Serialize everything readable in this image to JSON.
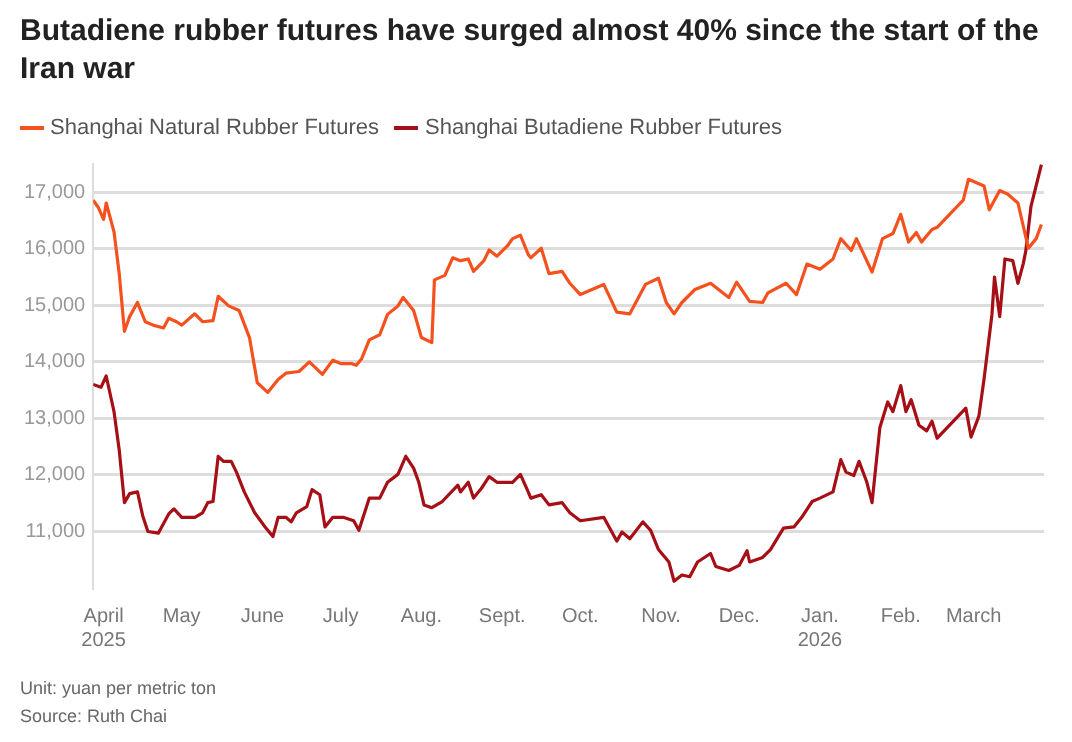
{
  "chart_data": {
    "type": "line",
    "title": "Butadiene rubber futures have surged almost 40% since the start of the Iran war",
    "legend": "top left",
    "grid": "y",
    "marker": "none",
    "line_style": "solid",
    "xlim": [
      "2025-03-28",
      "2026-03-28"
    ],
    "xticks": [
      {
        "value": "2025-04-01",
        "label": "April\n2025"
      },
      {
        "value": "2025-05-01",
        "label": "May"
      },
      {
        "value": "2025-06-01",
        "label": "June"
      },
      {
        "value": "2025-07-01",
        "label": "July"
      },
      {
        "value": "2025-08-01",
        "label": "Aug."
      },
      {
        "value": "2025-09-01",
        "label": "Sept."
      },
      {
        "value": "2025-10-01",
        "label": "Oct."
      },
      {
        "value": "2025-11-01",
        "label": "Nov."
      },
      {
        "value": "2025-12-01",
        "label": "Dec."
      },
      {
        "value": "2026-01-01",
        "label": "Jan.\n2026"
      },
      {
        "value": "2026-02-01",
        "label": "Feb."
      },
      {
        "value": "2026-03-01",
        "label": "March"
      }
    ],
    "ylim": [
      10000,
      17500
    ],
    "yticks": [
      {
        "value": 11000,
        "label": "11,000"
      },
      {
        "value": 12000,
        "label": "12,000"
      },
      {
        "value": 13000,
        "label": "13,000"
      },
      {
        "value": 14000,
        "label": "14,000"
      },
      {
        "value": 15000,
        "label": "15,000"
      },
      {
        "value": 16000,
        "label": "16,000"
      },
      {
        "value": 17000,
        "label": "17,000"
      }
    ],
    "annotations": [
      "Unit: yuan per metric ton",
      "Source: Ruth Chai"
    ],
    "series": [
      {
        "name": "Shanghai Natural Rubber Futures",
        "color": "#f4511e",
        "x": [
          "2025-03-28",
          "2025-03-30",
          "2025-04-01",
          "2025-04-02",
          "2025-04-05",
          "2025-04-07",
          "2025-04-09",
          "2025-04-11",
          "2025-04-14",
          "2025-04-17",
          "2025-04-20",
          "2025-04-24",
          "2025-04-26",
          "2025-04-29",
          "2025-05-01",
          "2025-05-06",
          "2025-05-09",
          "2025-05-13",
          "2025-05-15",
          "2025-05-19",
          "2025-05-23",
          "2025-05-27",
          "2025-05-30",
          "2025-06-03",
          "2025-06-07",
          "2025-06-10",
          "2025-06-15",
          "2025-06-19",
          "2025-06-24",
          "2025-06-28",
          "2025-07-01",
          "2025-07-05",
          "2025-07-07",
          "2025-07-09",
          "2025-07-12",
          "2025-07-16",
          "2025-07-19",
          "2025-07-23",
          "2025-07-25",
          "2025-07-29",
          "2025-08-01",
          "2025-08-05",
          "2025-08-06",
          "2025-08-10",
          "2025-08-13",
          "2025-08-16",
          "2025-08-19",
          "2025-08-21",
          "2025-08-25",
          "2025-08-27",
          "2025-08-30",
          "2025-09-03",
          "2025-09-05",
          "2025-09-08",
          "2025-09-11",
          "2025-09-12",
          "2025-09-16",
          "2025-09-19",
          "2025-09-24",
          "2025-09-27",
          "2025-10-01",
          "2025-10-10",
          "2025-10-15",
          "2025-10-20",
          "2025-10-26",
          "2025-10-31",
          "2025-11-03",
          "2025-11-06",
          "2025-11-09",
          "2025-11-14",
          "2025-11-20",
          "2025-11-27",
          "2025-11-30",
          "2025-12-05",
          "2025-12-10",
          "2025-12-12",
          "2025-12-19",
          "2025-12-23",
          "2025-12-27",
          "2026-01-01",
          "2026-01-06",
          "2026-01-09",
          "2026-01-13",
          "2026-01-15",
          "2026-01-21",
          "2026-01-25",
          "2026-01-29",
          "2026-02-01",
          "2026-02-04",
          "2026-02-07",
          "2026-02-09",
          "2026-02-13",
          "2026-02-15",
          "2026-02-25",
          "2026-02-27",
          "2026-03-05",
          "2026-03-07",
          "2026-03-11",
          "2026-03-14",
          "2026-03-18",
          "2026-03-22",
          "2026-03-25",
          "2026-03-27"
        ],
        "values": [
          16860,
          16730,
          16520,
          16810,
          16300,
          15560,
          14540,
          14800,
          15050,
          14710,
          14650,
          14600,
          14770,
          14710,
          14650,
          14850,
          14710,
          14730,
          15160,
          14990,
          14910,
          14430,
          13630,
          13460,
          13690,
          13800,
          13830,
          14000,
          13780,
          14030,
          13970,
          13970,
          13940,
          14050,
          14390,
          14480,
          14840,
          14990,
          15140,
          14910,
          14430,
          14340,
          15450,
          15530,
          15840,
          15790,
          15820,
          15600,
          15790,
          15980,
          15870,
          16050,
          16180,
          16240,
          15900,
          15840,
          16010,
          15560,
          15600,
          15390,
          15190,
          15370,
          14880,
          14850,
          15370,
          15480,
          15050,
          14850,
          15050,
          15280,
          15390,
          15140,
          15410,
          15070,
          15050,
          15220,
          15390,
          15190,
          15730,
          15640,
          15820,
          16180,
          15970,
          16180,
          15590,
          16180,
          16270,
          16610,
          16120,
          16290,
          16120,
          16340,
          16380,
          16860,
          17230,
          17110,
          16690,
          17030,
          16970,
          16810,
          16010,
          16180,
          16430
        ]
      },
      {
        "name": "Shanghai Butadiene Rubber Futures",
        "color": "#a50f15",
        "x": [
          "2025-03-28",
          "2025-03-31",
          "2025-04-02",
          "2025-04-05",
          "2025-04-07",
          "2025-04-09",
          "2025-04-11",
          "2025-04-14",
          "2025-04-16",
          "2025-04-18",
          "2025-04-22",
          "2025-04-26",
          "2025-04-28",
          "2025-05-01",
          "2025-05-06",
          "2025-05-09",
          "2025-05-11",
          "2025-05-13",
          "2025-05-15",
          "2025-05-17",
          "2025-05-20",
          "2025-05-22",
          "2025-05-25",
          "2025-05-29",
          "2025-06-02",
          "2025-06-05",
          "2025-06-07",
          "2025-06-10",
          "2025-06-12",
          "2025-06-14",
          "2025-06-18",
          "2025-06-20",
          "2025-06-23",
          "2025-06-25",
          "2025-06-28",
          "2025-07-02",
          "2025-07-06",
          "2025-07-08",
          "2025-07-12",
          "2025-07-16",
          "2025-07-19",
          "2025-07-23",
          "2025-07-26",
          "2025-07-29",
          "2025-07-31",
          "2025-08-02",
          "2025-08-05",
          "2025-08-09",
          "2025-08-15",
          "2025-08-16",
          "2025-08-19",
          "2025-08-21",
          "2025-08-24",
          "2025-08-27",
          "2025-08-30",
          "2025-09-05",
          "2025-09-08",
          "2025-09-11",
          "2025-09-12",
          "2025-09-16",
          "2025-09-19",
          "2025-09-24",
          "2025-09-27",
          "2025-10-01",
          "2025-10-10",
          "2025-10-15",
          "2025-10-17",
          "2025-10-20",
          "2025-10-25",
          "2025-10-28",
          "2025-10-31",
          "2025-11-04",
          "2025-11-06",
          "2025-11-09",
          "2025-11-12",
          "2025-11-15",
          "2025-11-20",
          "2025-11-22",
          "2025-11-27",
          "2025-12-01",
          "2025-12-04",
          "2025-12-05",
          "2025-12-10",
          "2025-12-13",
          "2025-12-18",
          "2025-12-22",
          "2025-12-25",
          "2025-12-29",
          "2026-01-01",
          "2026-01-06",
          "2026-01-09",
          "2026-01-11",
          "2026-01-14",
          "2026-01-16",
          "2026-01-19",
          "2026-01-21",
          "2026-01-24",
          "2026-01-27",
          "2026-01-29",
          "2026-02-01",
          "2026-02-03",
          "2026-02-05",
          "2026-02-08",
          "2026-02-11",
          "2026-02-13",
          "2026-02-15",
          "2026-02-26",
          "2026-02-28",
          "2026-03-03",
          "2026-03-05",
          "2026-03-08",
          "2026-03-09",
          "2026-03-11",
          "2026-03-13",
          "2026-03-16",
          "2026-03-18",
          "2026-03-20",
          "2026-03-21",
          "2026-03-23",
          "2026-03-27"
        ],
        "values": [
          13600,
          13550,
          13750,
          13120,
          12440,
          11510,
          11670,
          11700,
          11280,
          11000,
          10970,
          11310,
          11400,
          11250,
          11250,
          11330,
          11510,
          11530,
          12330,
          12240,
          12240,
          12050,
          11700,
          11330,
          11080,
          10910,
          11250,
          11250,
          11170,
          11330,
          11440,
          11740,
          11650,
          11080,
          11250,
          11250,
          11190,
          11020,
          11590,
          11590,
          11870,
          12010,
          12330,
          12120,
          11870,
          11470,
          11420,
          11530,
          11820,
          11700,
          11870,
          11590,
          11760,
          11970,
          11870,
          11870,
          12010,
          11700,
          11590,
          11650,
          11470,
          11510,
          11330,
          11190,
          11250,
          10830,
          10990,
          10870,
          11170,
          11020,
          10680,
          10460,
          10120,
          10230,
          10200,
          10460,
          10610,
          10380,
          10310,
          10400,
          10660,
          10460,
          10540,
          10680,
          11060,
          11080,
          11250,
          11530,
          11590,
          11700,
          12270,
          12050,
          11990,
          12240,
          11870,
          11510,
          12840,
          13290,
          13120,
          13580,
          13120,
          13330,
          12880,
          12780,
          12950,
          12650,
          13180,
          12670,
          13040,
          13700,
          14830,
          15500,
          14800,
          15820,
          15790,
          15390,
          15730,
          15960,
          16750,
          17490
        ]
      }
    ]
  }
}
